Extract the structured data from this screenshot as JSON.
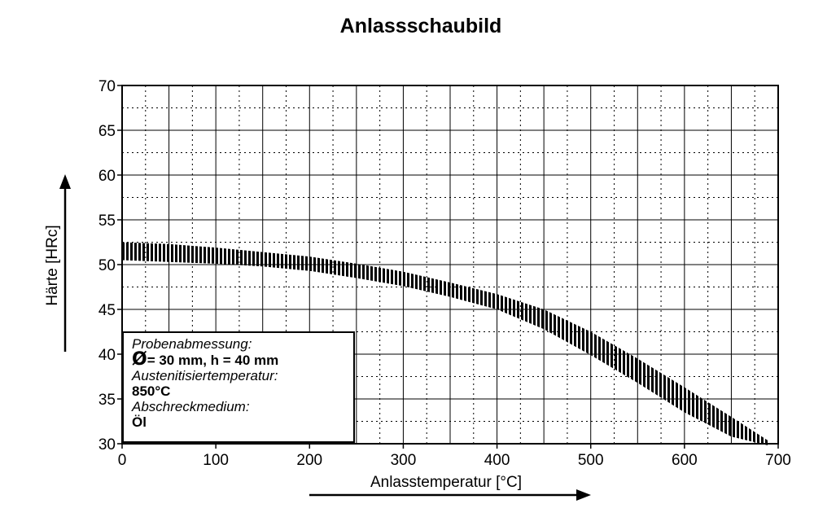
{
  "chart_data": {
    "type": "area",
    "title": "Anlassschaubild",
    "xlabel": "Anlasstemperatur [°C]",
    "ylabel": "Härte [HRc]",
    "xlim": [
      0,
      700
    ],
    "ylim": [
      30,
      70
    ],
    "xticks": [
      0,
      100,
      200,
      300,
      400,
      500,
      600,
      700
    ],
    "yticks": [
      30,
      35,
      40,
      45,
      50,
      55,
      60,
      65,
      70
    ],
    "grid": {
      "major": true,
      "minor_dotted": true
    },
    "band": {
      "x": [
        0,
        50,
        100,
        150,
        200,
        250,
        300,
        350,
        400,
        450,
        500,
        550,
        600,
        650,
        690
      ],
      "upper": [
        52.5,
        52.3,
        51.9,
        51.4,
        50.9,
        50.1,
        49.2,
        48.0,
        46.7,
        45.0,
        42.5,
        39.5,
        36.3,
        33.0,
        30.3
      ],
      "lower": [
        50.5,
        50.3,
        50.1,
        49.8,
        49.3,
        48.5,
        47.6,
        46.4,
        45.0,
        42.8,
        39.9,
        36.8,
        33.5,
        30.8,
        29.8
      ]
    }
  },
  "info_box": {
    "label1": "Probenabmessung:",
    "value1_symbol": "Ø",
    "value1": "= 30 mm, h = 40 mm",
    "label2": "Austenitisiertemperatur:",
    "value2": "850°C",
    "label3": "Abschreckmedium:",
    "value3": "Öl"
  }
}
